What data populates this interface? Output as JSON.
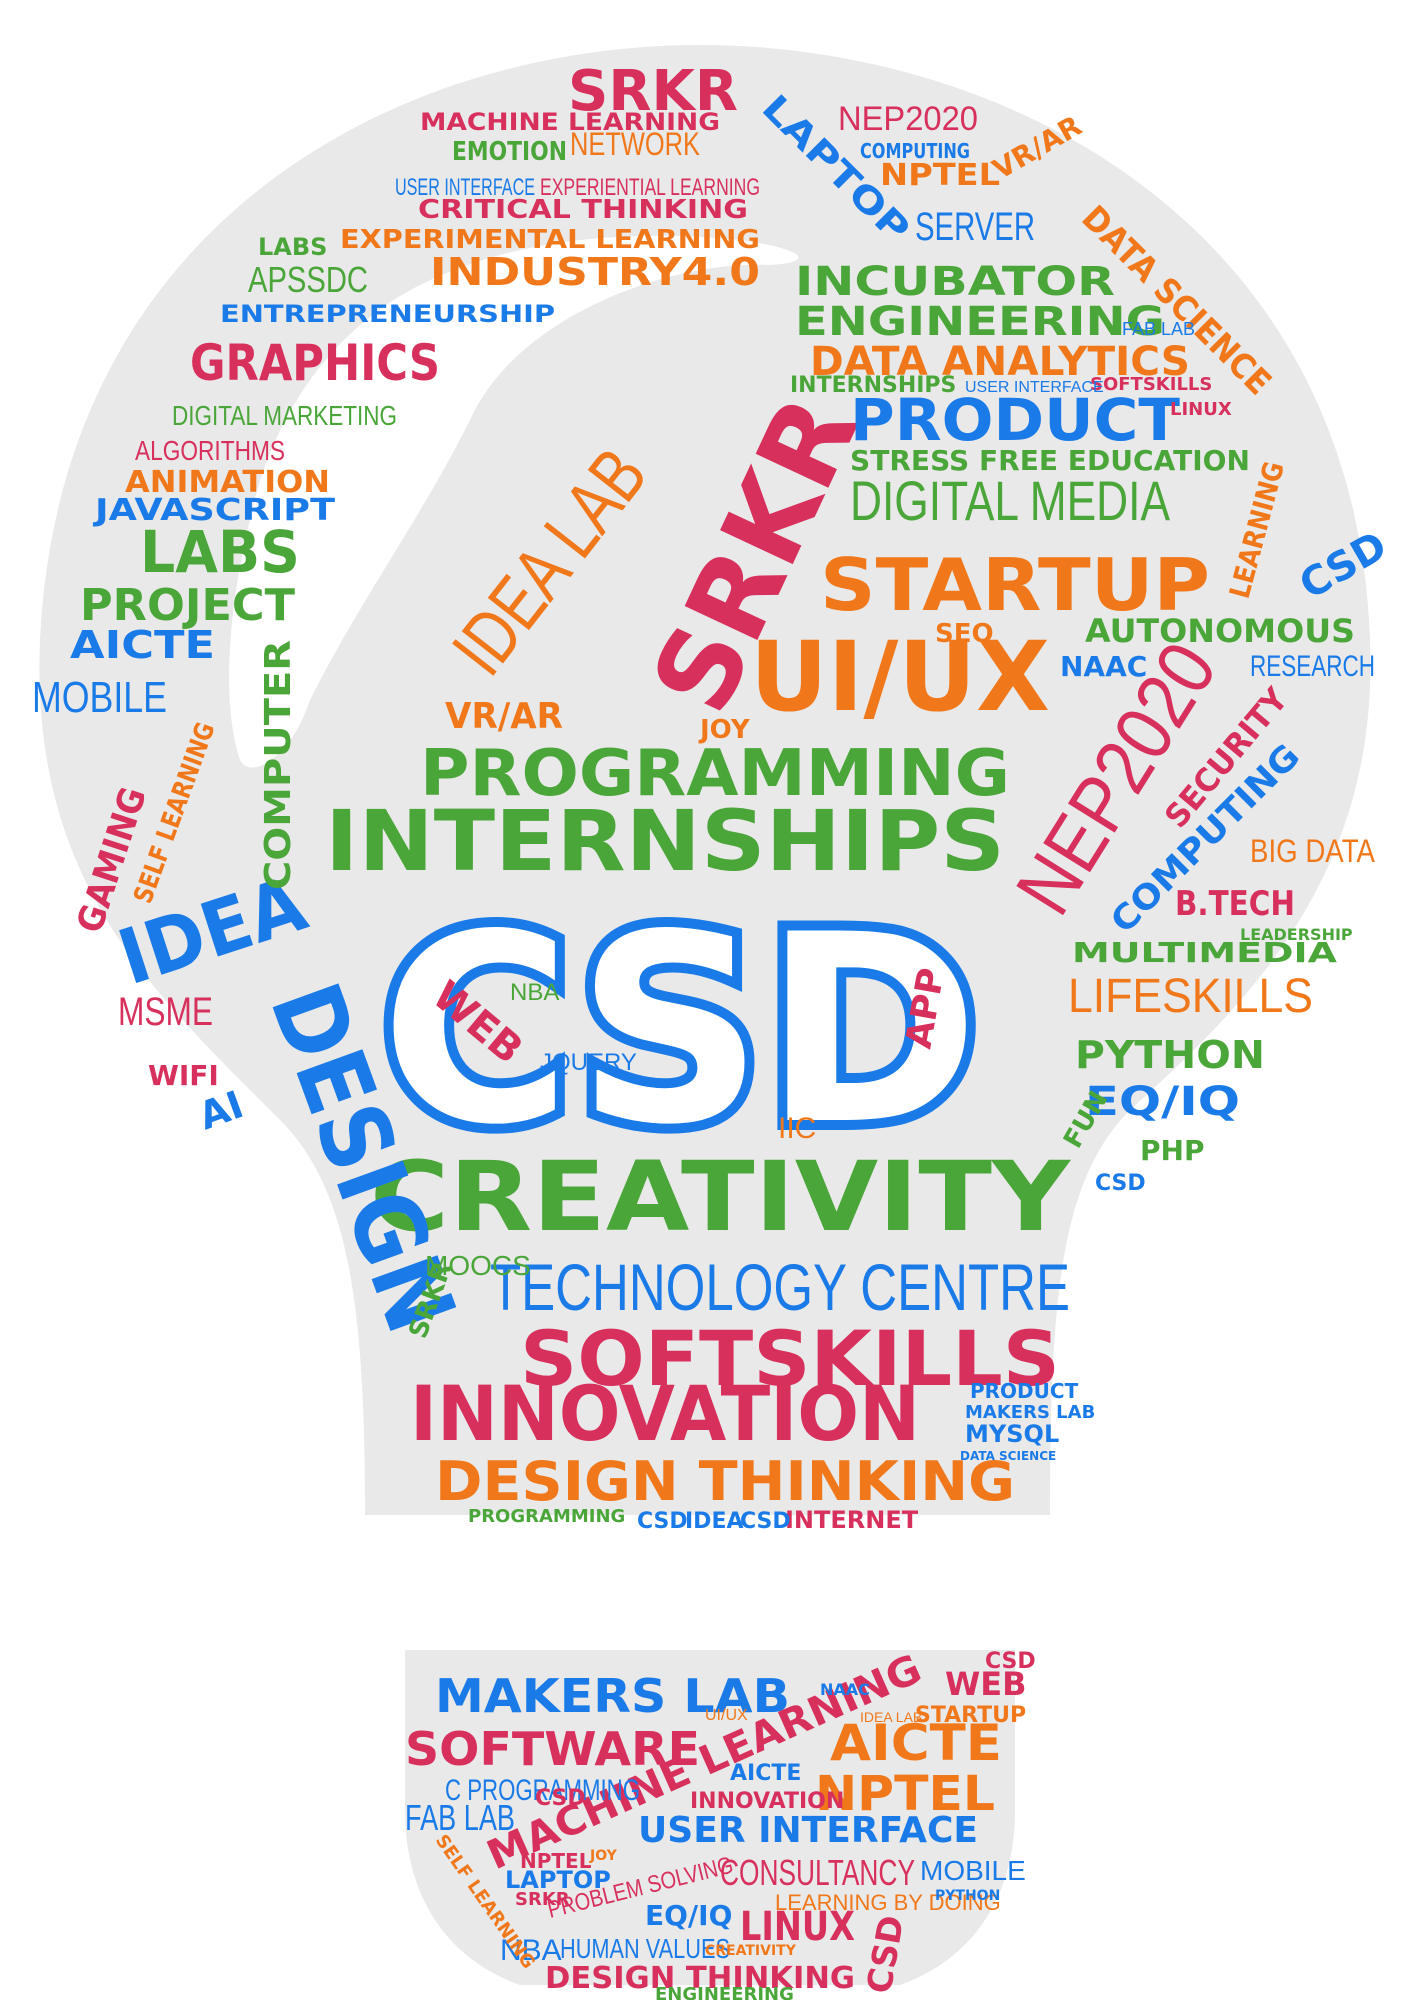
{
  "colors": {
    "blue": "#1a7be8",
    "red": "#d8305c",
    "green": "#4ba63a",
    "orange": "#f0781a",
    "background": "#ffffff",
    "bulb_fill": "#e9e9e9"
  },
  "bulb_words": {
    "csd_center": "CSD",
    "creativity": "CREATIVITY",
    "internships": "INTERNSHIPS",
    "programming": "PROGRAMMING",
    "technology_centre": "TECHNOLOGY CENTRE",
    "softskills": "SOFTSKILLS",
    "innovation": "INNOVATION",
    "design_thinking": "DESIGN THINKING",
    "design_vertical": "DESIGN",
    "idea": "IDEA",
    "srkr_diag": "SRKR",
    "idea_lab": "IDEA LAB",
    "startup": "STARTUP",
    "ui_ux": "UI/UX",
    "nep2020": "NEP2020",
    "digital_media": "DIGITAL MEDIA",
    "product": "PRODUCT",
    "stress_free": "STRESS FREE EDUCATION",
    "data_analytics": "DATA ANALYTICS",
    "engineering": "ENGINEERING",
    "incubator": "INCUBATOR",
    "graphics": "GRAPHICS",
    "srkr_top": "SRKR",
    "machine_learning_top": "MACHINE LEARNING",
    "network": "NETWORK",
    "emotion": "EMOTION",
    "nep2020_top": "NEP2020",
    "computing_top": "COMPUTING",
    "nptel_top": "NPTEL",
    "vr_ar_top": "VR/AR",
    "laptop": "LAPTOP",
    "data_science": "DATA SCIENCE",
    "server": "SERVER",
    "critical_thinking": "CRITICAL THINKING",
    "experiential_learning": "EXPERIENTIAL LEARNING",
    "experimental_learning": "EXPERIMENTAL LEARNING",
    "user_interface": "USER INTERFACE",
    "industry": "INDUSTRY4.0",
    "apssdc": "APSSDC",
    "labs": "LABS",
    "entrepreneurship": "ENTREPRENEURSHIP",
    "digital_marketing": "DIGITAL MARKETING",
    "algorithms": "ALGORITHMS",
    "animation": "ANIMATION",
    "javascript": "JAVASCRIPT",
    "labs_big": "LABS",
    "project": "PROJECT",
    "aicte": "AICTE",
    "mobile": "MOBILE",
    "computer": "COMPUTER",
    "gaming": "GAMING",
    "self_learning": "SELF LEARNING",
    "msme": "MSME",
    "wifi": "WIFI",
    "ai_left": "AI",
    "autonomous": "AUTONOMOUS",
    "research": "RESEARCH",
    "naac": "NAAC",
    "seo": "SEO",
    "vr_ar_mid": "VR/AR",
    "joy": "JOY",
    "security": "SECURITY",
    "computing_diag": "COMPUTING",
    "big_data": "BIG DATA",
    "b_tech": "B.TECH",
    "multimedia": "MULTIMEDIA",
    "lifeskills": "LIFESKILLS",
    "python": "PYTHON",
    "eq_iq": "EQ/IQ",
    "fun": "FUN",
    "php": "PHP",
    "learning": "LEARNING",
    "csd_right": "CSD",
    "web": "WEB",
    "app": "APP",
    "jquery": "JQUERY",
    "nba": "NBA",
    "iic": "IIC",
    "moocs": "MOOCS",
    "srkr_small": "SRKR",
    "internet": "INTERNET",
    "csd_bottom_a": "CSD",
    "idea_bottom": "IDEA",
    "csd_bottom_b": "CSD",
    "programming_small": "PROGRAMMING",
    "mysql": "MYSQL",
    "makers_lab_small": "MAKERS LAB",
    "product_small": "PRODUCT",
    "data_science_small": "DATA SCIENCE",
    "fab_lab_small": "FAB LAB",
    "softskills_small": "SOFTSKILLS",
    "internships_small": "INTERNSHIPS",
    "user_interface_small": "USER INTERFACE",
    "linux_small": "LINUX",
    "leadership": "LEADERSHIP",
    "csd_tiny": "CSD"
  },
  "base_words": {
    "makers_lab": "MAKERS LAB",
    "software": "SOFTWARE",
    "machine_learning": "MACHINE LEARNING",
    "c_programming": "C PROGRAMMING",
    "aicte": "AICTE",
    "nptel": "NPTEL",
    "fab_lab": "FAB LAB",
    "user_interface": "USER INTERFACE",
    "consultancy": "CONSULTANCY",
    "mobile": "MOBILE",
    "linux": "LINUX",
    "problem_solving": "PROBLEM SOLVING",
    "eq_iq": "EQ/IQ",
    "laptop": "LAPTOP",
    "nba": "NBA",
    "human_values": "HUMAN VALUES",
    "design_thinking": "DESIGN THINKING",
    "engineering": "ENGINEERING",
    "learning_by_doing": "LEARNING BY DOING",
    "web": "WEB",
    "startup": "STARTUP",
    "csd_a": "CSD",
    "csd_b": "CSD",
    "csd_c": "CSD",
    "innovation": "INNOVATION",
    "naac": "NAAC",
    "idea_lab": "IDEA LAB",
    "ui_ux": "UI/UX",
    "self_learning": "SELF LEARNING",
    "aicte_small": "AICTE",
    "nptel_small": "NPTEL",
    "srkr": "SRKR",
    "creativity": "CREATIVITY",
    "python": "PYTHON",
    "joy": "JOY"
  }
}
